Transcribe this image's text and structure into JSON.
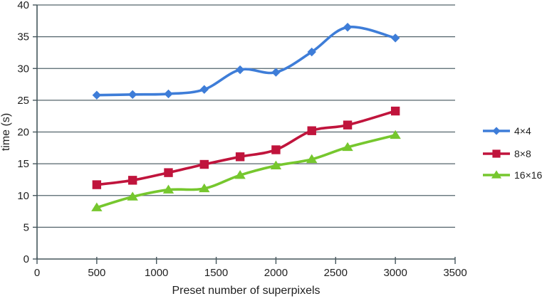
{
  "figure": {
    "background": "#ffffff"
  },
  "chart_data": {
    "type": "line",
    "x": [
      500,
      800,
      1100,
      1400,
      1700,
      2000,
      2300,
      2600,
      3000
    ],
    "series": [
      {
        "name": "4×4",
        "marker": "diamond",
        "color": "#3E7DD8",
        "values": [
          25.8,
          25.9,
          26.0,
          26.7,
          29.8,
          29.4,
          32.6,
          36.5,
          34.8
        ]
      },
      {
        "name": "8×8",
        "marker": "square",
        "color": "#C0143C",
        "values": [
          11.7,
          12.4,
          13.6,
          14.9,
          16.1,
          17.2,
          20.2,
          21.1,
          23.3
        ]
      },
      {
        "name": "16×16",
        "marker": "triangle",
        "color": "#76C72E",
        "values": [
          8.1,
          9.8,
          10.9,
          11.1,
          13.2,
          14.7,
          15.7,
          17.6,
          19.5
        ]
      }
    ],
    "title": "",
    "xlabel": "Preset number of superpixels",
    "ylabel": "time (s)",
    "xlim": [
      0,
      3500
    ],
    "ylim": [
      0,
      40
    ],
    "xticks": [
      0,
      500,
      1000,
      1500,
      2000,
      2500,
      3000,
      3500
    ],
    "yticks": [
      0,
      5,
      10,
      15,
      20,
      25,
      30,
      35,
      40
    ],
    "grid": "horizontal",
    "legend_position": "right",
    "line_style": "smoothed",
    "colors": {
      "gridline": "#53646B",
      "axis": "#45565C",
      "text": "#1F1F1F"
    }
  }
}
